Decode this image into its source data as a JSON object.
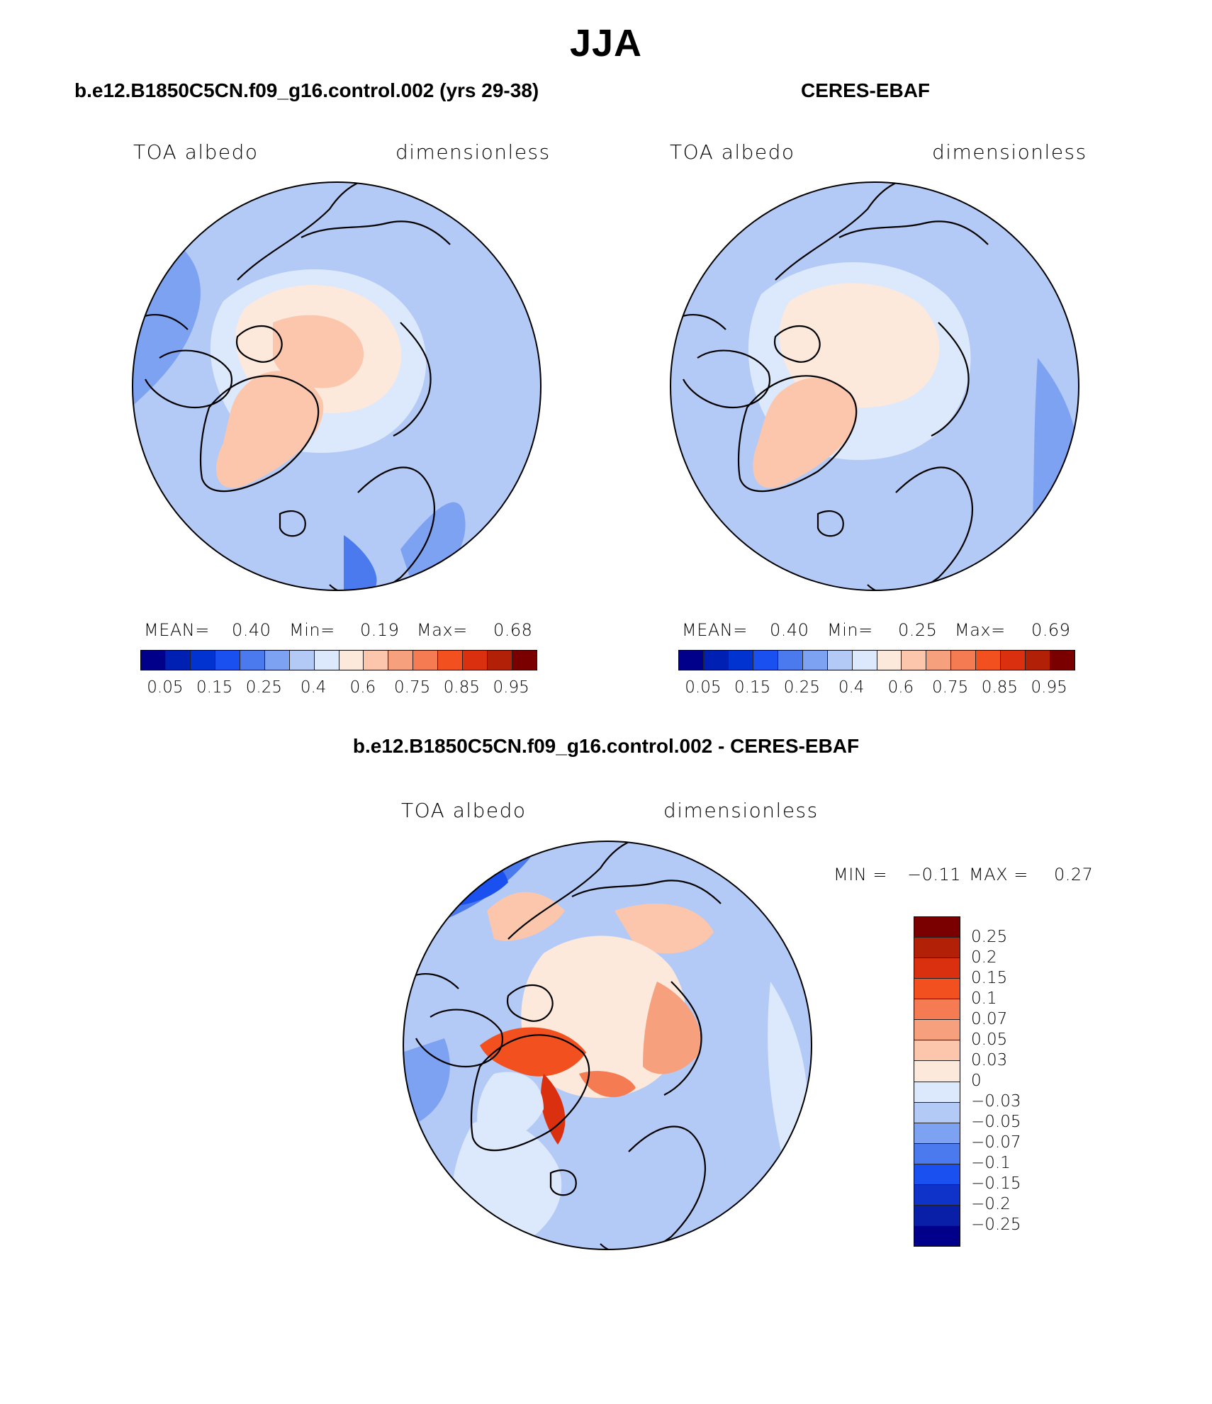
{
  "title": "JJA",
  "panels": {
    "model": {
      "title": "b.e12.B1850C5CN.f09_g16.control.002 (yrs 29-38)",
      "variable": "TOA albedo",
      "units": "dimensionless",
      "mean_label": "MEAN=",
      "mean_value": "0.40",
      "min_label": "Min=",
      "min_value": "0.19",
      "max_label": "Max=",
      "max_value": "0.68"
    },
    "obs": {
      "title": "CERES-EBAF",
      "variable": "TOA albedo",
      "units": "dimensionless",
      "mean_label": "MEAN=",
      "mean_value": "0.40",
      "min_label": "Min=",
      "min_value": "0.25",
      "max_label": "Max=",
      "max_value": "0.69"
    },
    "diff": {
      "title": "b.e12.B1850C5CN.f09_g16.control.002 - CERES-EBAF",
      "variable": "TOA albedo",
      "units": "dimensionless",
      "min_label": "MIN =",
      "min_value": "−0.11",
      "max_label": "MAX =",
      "max_value": "0.27"
    }
  },
  "colorbar_abs": {
    "colors": [
      "#00008b",
      "#0020b4",
      "#0033d0",
      "#1a4ff0",
      "#4a7aee",
      "#7ea2f2",
      "#b3c9f6",
      "#dce8fb",
      "#fde9dc",
      "#fbc6ac",
      "#f7a07d",
      "#f47b52",
      "#f2511f",
      "#db3010",
      "#b32008",
      "#7a0000"
    ],
    "labels": [
      "0.05",
      "0.15",
      "0.25",
      "0.4",
      "0.6",
      "0.75",
      "0.85",
      "0.95"
    ]
  },
  "colorbar_diff": {
    "colors": [
      "#00008b",
      "#0a1fa8",
      "#0f33c8",
      "#1a4ff0",
      "#4a7aee",
      "#7ea2f2",
      "#b3c9f6",
      "#dce8fb",
      "#fde9dc",
      "#fbc6ac",
      "#f7a07d",
      "#f47b52",
      "#f2511f",
      "#db3010",
      "#b32008",
      "#7a0000"
    ],
    "labels": [
      "0.25",
      "0.2",
      "0.15",
      "0.1",
      "0.07",
      "0.05",
      "0.03",
      "0",
      "−0.03",
      "−0.05",
      "−0.07",
      "−0.1",
      "−0.15",
      "−0.2",
      "−0.25"
    ]
  }
}
